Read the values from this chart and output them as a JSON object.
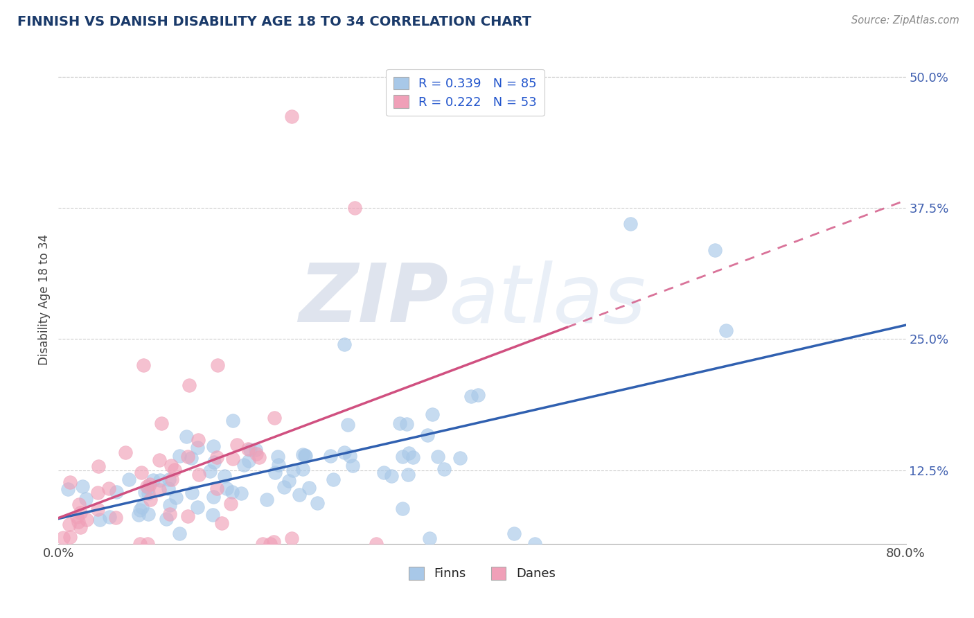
{
  "title": "FINNISH VS DANISH DISABILITY AGE 18 TO 34 CORRELATION CHART",
  "source_text": "Source: ZipAtlas.com",
  "ylabel": "Disability Age 18 to 34",
  "xlim": [
    0.0,
    0.8
  ],
  "ylim": [
    0.055,
    0.52
  ],
  "xticks": [
    0.0,
    0.1,
    0.2,
    0.3,
    0.4,
    0.5,
    0.6,
    0.7,
    0.8
  ],
  "xticklabels": [
    "0.0%",
    "",
    "",
    "",
    "",
    "",
    "",
    "",
    "80.0%"
  ],
  "yticks": [
    0.125,
    0.25,
    0.375,
    0.5
  ],
  "yticklabels": [
    "12.5%",
    "25.0%",
    "37.5%",
    "50.0%"
  ],
  "legend_R": [
    0.339,
    0.222
  ],
  "legend_N": [
    85,
    53
  ],
  "blue_color": "#a8c8e8",
  "pink_color": "#f0a0b8",
  "blue_line_color": "#3060b0",
  "pink_line_color": "#d05080",
  "title_color": "#1a3a6a",
  "axis_label_color": "#444444",
  "tick_color_y": "#4060b0",
  "tick_color_x": "#444444",
  "legend_R_color": "#2255cc",
  "background_color": "#ffffff",
  "grid_color": "#cccccc",
  "fi_intercept": 0.09,
  "fi_slope": 0.16,
  "da_intercept": 0.085,
  "da_slope": 0.22
}
